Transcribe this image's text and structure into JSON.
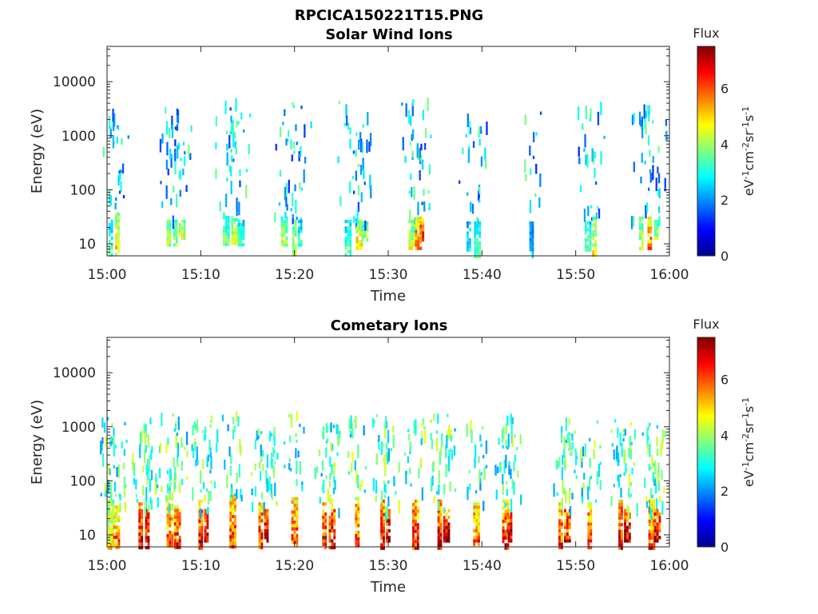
{
  "figure": {
    "title": "RPCICA150221T15.PNG"
  },
  "chart_data": [
    {
      "type": "heatmap",
      "title": "Solar Wind Ions",
      "xlabel": "Time",
      "ylabel": "Energy (eV)",
      "x_ticks": [
        "15:00",
        "15:10",
        "15:20",
        "15:30",
        "15:40",
        "15:50",
        "16:00"
      ],
      "xlim_minutes": [
        0,
        60
      ],
      "y_scale": "log",
      "y_ticks": [
        "10",
        "100",
        "1000",
        "10000"
      ],
      "ylim": [
        6,
        45000
      ],
      "colorbar": {
        "label": "Flux",
        "units": "eV-1cm-2sr-1s-1",
        "range": [
          0,
          7.5
        ],
        "ticks": [
          "0",
          "2",
          "4",
          "6"
        ],
        "colormap": "jet"
      },
      "low_energy_bursts": [
        {
          "t": 0.4,
          "e_lo": 6,
          "e_hi": 28,
          "flux": 3.2
        },
        {
          "t": 1.1,
          "e_lo": 6,
          "e_hi": 38,
          "flux": 4.8
        },
        {
          "t": 6.6,
          "e_lo": 10,
          "e_hi": 28,
          "flux": 4.2
        },
        {
          "t": 7.3,
          "e_lo": 10,
          "e_hi": 28,
          "flux": 4.0
        },
        {
          "t": 7.9,
          "e_lo": 12,
          "e_hi": 28,
          "flux": 4.6
        },
        {
          "t": 12.6,
          "e_lo": 10,
          "e_hi": 38,
          "flux": 3.6
        },
        {
          "t": 13.5,
          "e_lo": 10,
          "e_hi": 30,
          "flux": 4.4
        },
        {
          "t": 14.2,
          "e_lo": 10,
          "e_hi": 28,
          "flux": 3.4
        },
        {
          "t": 18.8,
          "e_lo": 10,
          "e_hi": 32,
          "flux": 4.0
        },
        {
          "t": 20.0,
          "e_lo": 6,
          "e_hi": 28,
          "flux": 4.3
        },
        {
          "t": 20.6,
          "e_lo": 10,
          "e_hi": 28,
          "flux": 3.2
        },
        {
          "t": 25.6,
          "e_lo": 6,
          "e_hi": 28,
          "flux": 3.4
        },
        {
          "t": 26.8,
          "e_lo": 8,
          "e_hi": 28,
          "flux": 5.1
        },
        {
          "t": 27.4,
          "e_lo": 12,
          "e_hi": 26,
          "flux": 4.3
        },
        {
          "t": 32.4,
          "e_lo": 8,
          "e_hi": 28,
          "flux": 4.4
        },
        {
          "t": 33.1,
          "e_lo": 8,
          "e_hi": 32,
          "flux": 5.9
        },
        {
          "t": 33.6,
          "e_lo": 12,
          "e_hi": 30,
          "flux": 6.4
        },
        {
          "t": 38.6,
          "e_lo": 8,
          "e_hi": 26,
          "flux": 2.8
        },
        {
          "t": 39.4,
          "e_lo": 6,
          "e_hi": 26,
          "flux": 3.6
        },
        {
          "t": 45.3,
          "e_lo": 6,
          "e_hi": 26,
          "flux": 2.4
        },
        {
          "t": 51.2,
          "e_lo": 8,
          "e_hi": 26,
          "flux": 3.5
        },
        {
          "t": 52.0,
          "e_lo": 6,
          "e_hi": 32,
          "flux": 4.6
        },
        {
          "t": 57.0,
          "e_lo": 8,
          "e_hi": 32,
          "flux": 4.2
        },
        {
          "t": 57.9,
          "e_lo": 8,
          "e_hi": 32,
          "flux": 5.8
        },
        {
          "t": 58.6,
          "e_lo": 12,
          "e_hi": 28,
          "flux": 4.1
        }
      ]
    },
    {
      "type": "heatmap",
      "title": "Cometary Ions",
      "xlabel": "Time",
      "ylabel": "Energy (eV)",
      "x_ticks": [
        "15:00",
        "15:10",
        "15:20",
        "15:30",
        "15:40",
        "15:50",
        "16:00"
      ],
      "xlim_minutes": [
        0,
        60
      ],
      "y_scale": "log",
      "y_ticks": [
        "10",
        "100",
        "1000",
        "10000"
      ],
      "ylim": [
        6,
        45000
      ],
      "colorbar": {
        "label": "Flux",
        "units": "eV-1cm-2sr-1s-1",
        "range": [
          0,
          7.5
        ],
        "ticks": [
          "0",
          "2",
          "4",
          "6"
        ],
        "colormap": "jet"
      },
      "low_energy_bursts": [
        {
          "t": 0.3,
          "e_lo": 6,
          "e_hi": 45,
          "flux": 4.8
        },
        {
          "t": 0.9,
          "e_lo": 6,
          "e_hi": 35,
          "flux": 5.8
        },
        {
          "t": 3.6,
          "e_lo": 6,
          "e_hi": 40,
          "flux": 6.8
        },
        {
          "t": 4.3,
          "e_lo": 6,
          "e_hi": 30,
          "flux": 7.3
        },
        {
          "t": 6.6,
          "e_lo": 6,
          "e_hi": 50,
          "flux": 5.9
        },
        {
          "t": 7.4,
          "e_lo": 6,
          "e_hi": 35,
          "flux": 6.4
        },
        {
          "t": 10.0,
          "e_lo": 6,
          "e_hi": 45,
          "flux": 6.6
        },
        {
          "t": 10.6,
          "e_lo": 8,
          "e_hi": 30,
          "flux": 7.1
        },
        {
          "t": 13.3,
          "e_lo": 6,
          "e_hi": 55,
          "flux": 6.0
        },
        {
          "t": 16.4,
          "e_lo": 6,
          "e_hi": 40,
          "flux": 6.4
        },
        {
          "t": 17.0,
          "e_lo": 8,
          "e_hi": 30,
          "flux": 7.0
        },
        {
          "t": 19.9,
          "e_lo": 6,
          "e_hi": 50,
          "flux": 6.0
        },
        {
          "t": 23.2,
          "e_lo": 6,
          "e_hi": 40,
          "flux": 6.4
        },
        {
          "t": 23.9,
          "e_lo": 6,
          "e_hi": 30,
          "flux": 7.2
        },
        {
          "t": 26.7,
          "e_lo": 6,
          "e_hi": 50,
          "flux": 6.1
        },
        {
          "t": 29.4,
          "e_lo": 6,
          "e_hi": 45,
          "flux": 6.6
        },
        {
          "t": 30.0,
          "e_lo": 8,
          "e_hi": 30,
          "flux": 7.2
        },
        {
          "t": 32.8,
          "e_lo": 6,
          "e_hi": 45,
          "flux": 6.4
        },
        {
          "t": 35.5,
          "e_lo": 6,
          "e_hi": 45,
          "flux": 6.8
        },
        {
          "t": 36.1,
          "e_lo": 8,
          "e_hi": 30,
          "flux": 7.3
        },
        {
          "t": 39.3,
          "e_lo": 6,
          "e_hi": 40,
          "flux": 6.0
        },
        {
          "t": 42.4,
          "e_lo": 6,
          "e_hi": 45,
          "flux": 6.6
        },
        {
          "t": 43.0,
          "e_lo": 8,
          "e_hi": 30,
          "flux": 7.1
        },
        {
          "t": 48.4,
          "e_lo": 6,
          "e_hi": 40,
          "flux": 6.2
        },
        {
          "t": 49.0,
          "e_lo": 8,
          "e_hi": 30,
          "flux": 6.9
        },
        {
          "t": 51.5,
          "e_lo": 6,
          "e_hi": 40,
          "flux": 6.4
        },
        {
          "t": 54.8,
          "e_lo": 6,
          "e_hi": 45,
          "flux": 6.5
        },
        {
          "t": 55.4,
          "e_lo": 8,
          "e_hi": 30,
          "flux": 7.2
        },
        {
          "t": 58.0,
          "e_lo": 6,
          "e_hi": 45,
          "flux": 6.3
        },
        {
          "t": 58.6,
          "e_lo": 8,
          "e_hi": 30,
          "flux": 7.0
        }
      ]
    }
  ]
}
